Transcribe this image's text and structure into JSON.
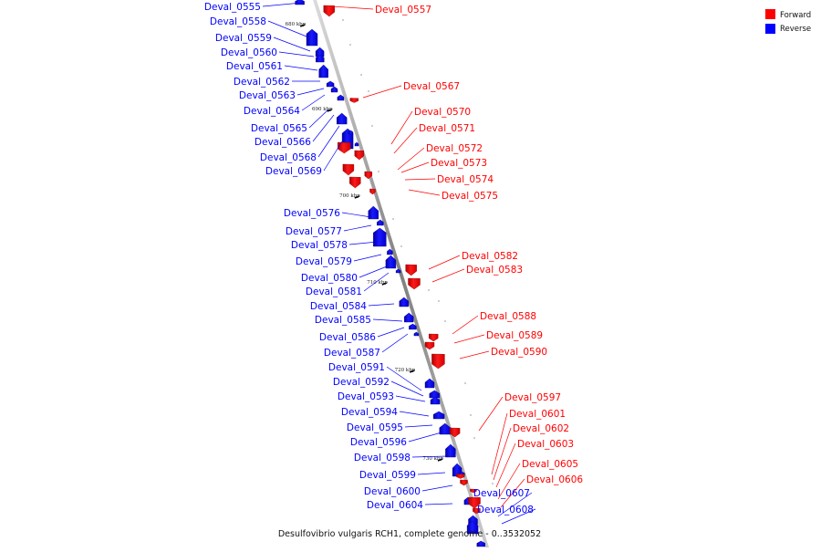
{
  "caption": "Desulfovibrio vulgaris RCH1, complete genome - 0..3532052",
  "legend": [
    {
      "label": "Forward",
      "color": "#ff0000"
    },
    {
      "label": "Reverse",
      "color": "#0000ff"
    }
  ],
  "colors": {
    "forward": "#ff0000",
    "reverse": "#0000ff",
    "axis": "#888888"
  },
  "ticks": [
    "680 kbp",
    "690 kbp",
    "700 kbp",
    "710 kbp",
    "720 kbp",
    "730 kbp"
  ],
  "forward_genes": [
    "Deval_0557",
    "Deval_0567",
    "Deval_0570",
    "Deval_0571",
    "Deval_0572",
    "Deval_0573",
    "Deval_0574",
    "Deval_0575",
    "Deval_0582",
    "Deval_0583",
    "Deval_0588",
    "Deval_0589",
    "Deval_0590",
    "Deval_0597",
    "Deval_0601",
    "Deval_0602",
    "Deval_0603",
    "Deval_0605",
    "Deval_0606"
  ],
  "reverse_genes": [
    "Deval_0555",
    "Deval_0558",
    "Deval_0559",
    "Deval_0560",
    "Deval_0561",
    "Deval_0562",
    "Deval_0563",
    "Deval_0564",
    "Deval_0565",
    "Deval_0566",
    "Deval_0568",
    "Deval_0569",
    "Deval_0576",
    "Deval_0577",
    "Deval_0578",
    "Deval_0579",
    "Deval_0580",
    "Deval_0581",
    "Deval_0584",
    "Deval_0585",
    "Deval_0586",
    "Deval_0587",
    "Deval_0591",
    "Deval_0592",
    "Deval_0593",
    "Deval_0594",
    "Deval_0595",
    "Deval_0596",
    "Deval_0598",
    "Deval_0599",
    "Deval_0600",
    "Deval_0604",
    "Deval_0607",
    "Deval_0608"
  ]
}
